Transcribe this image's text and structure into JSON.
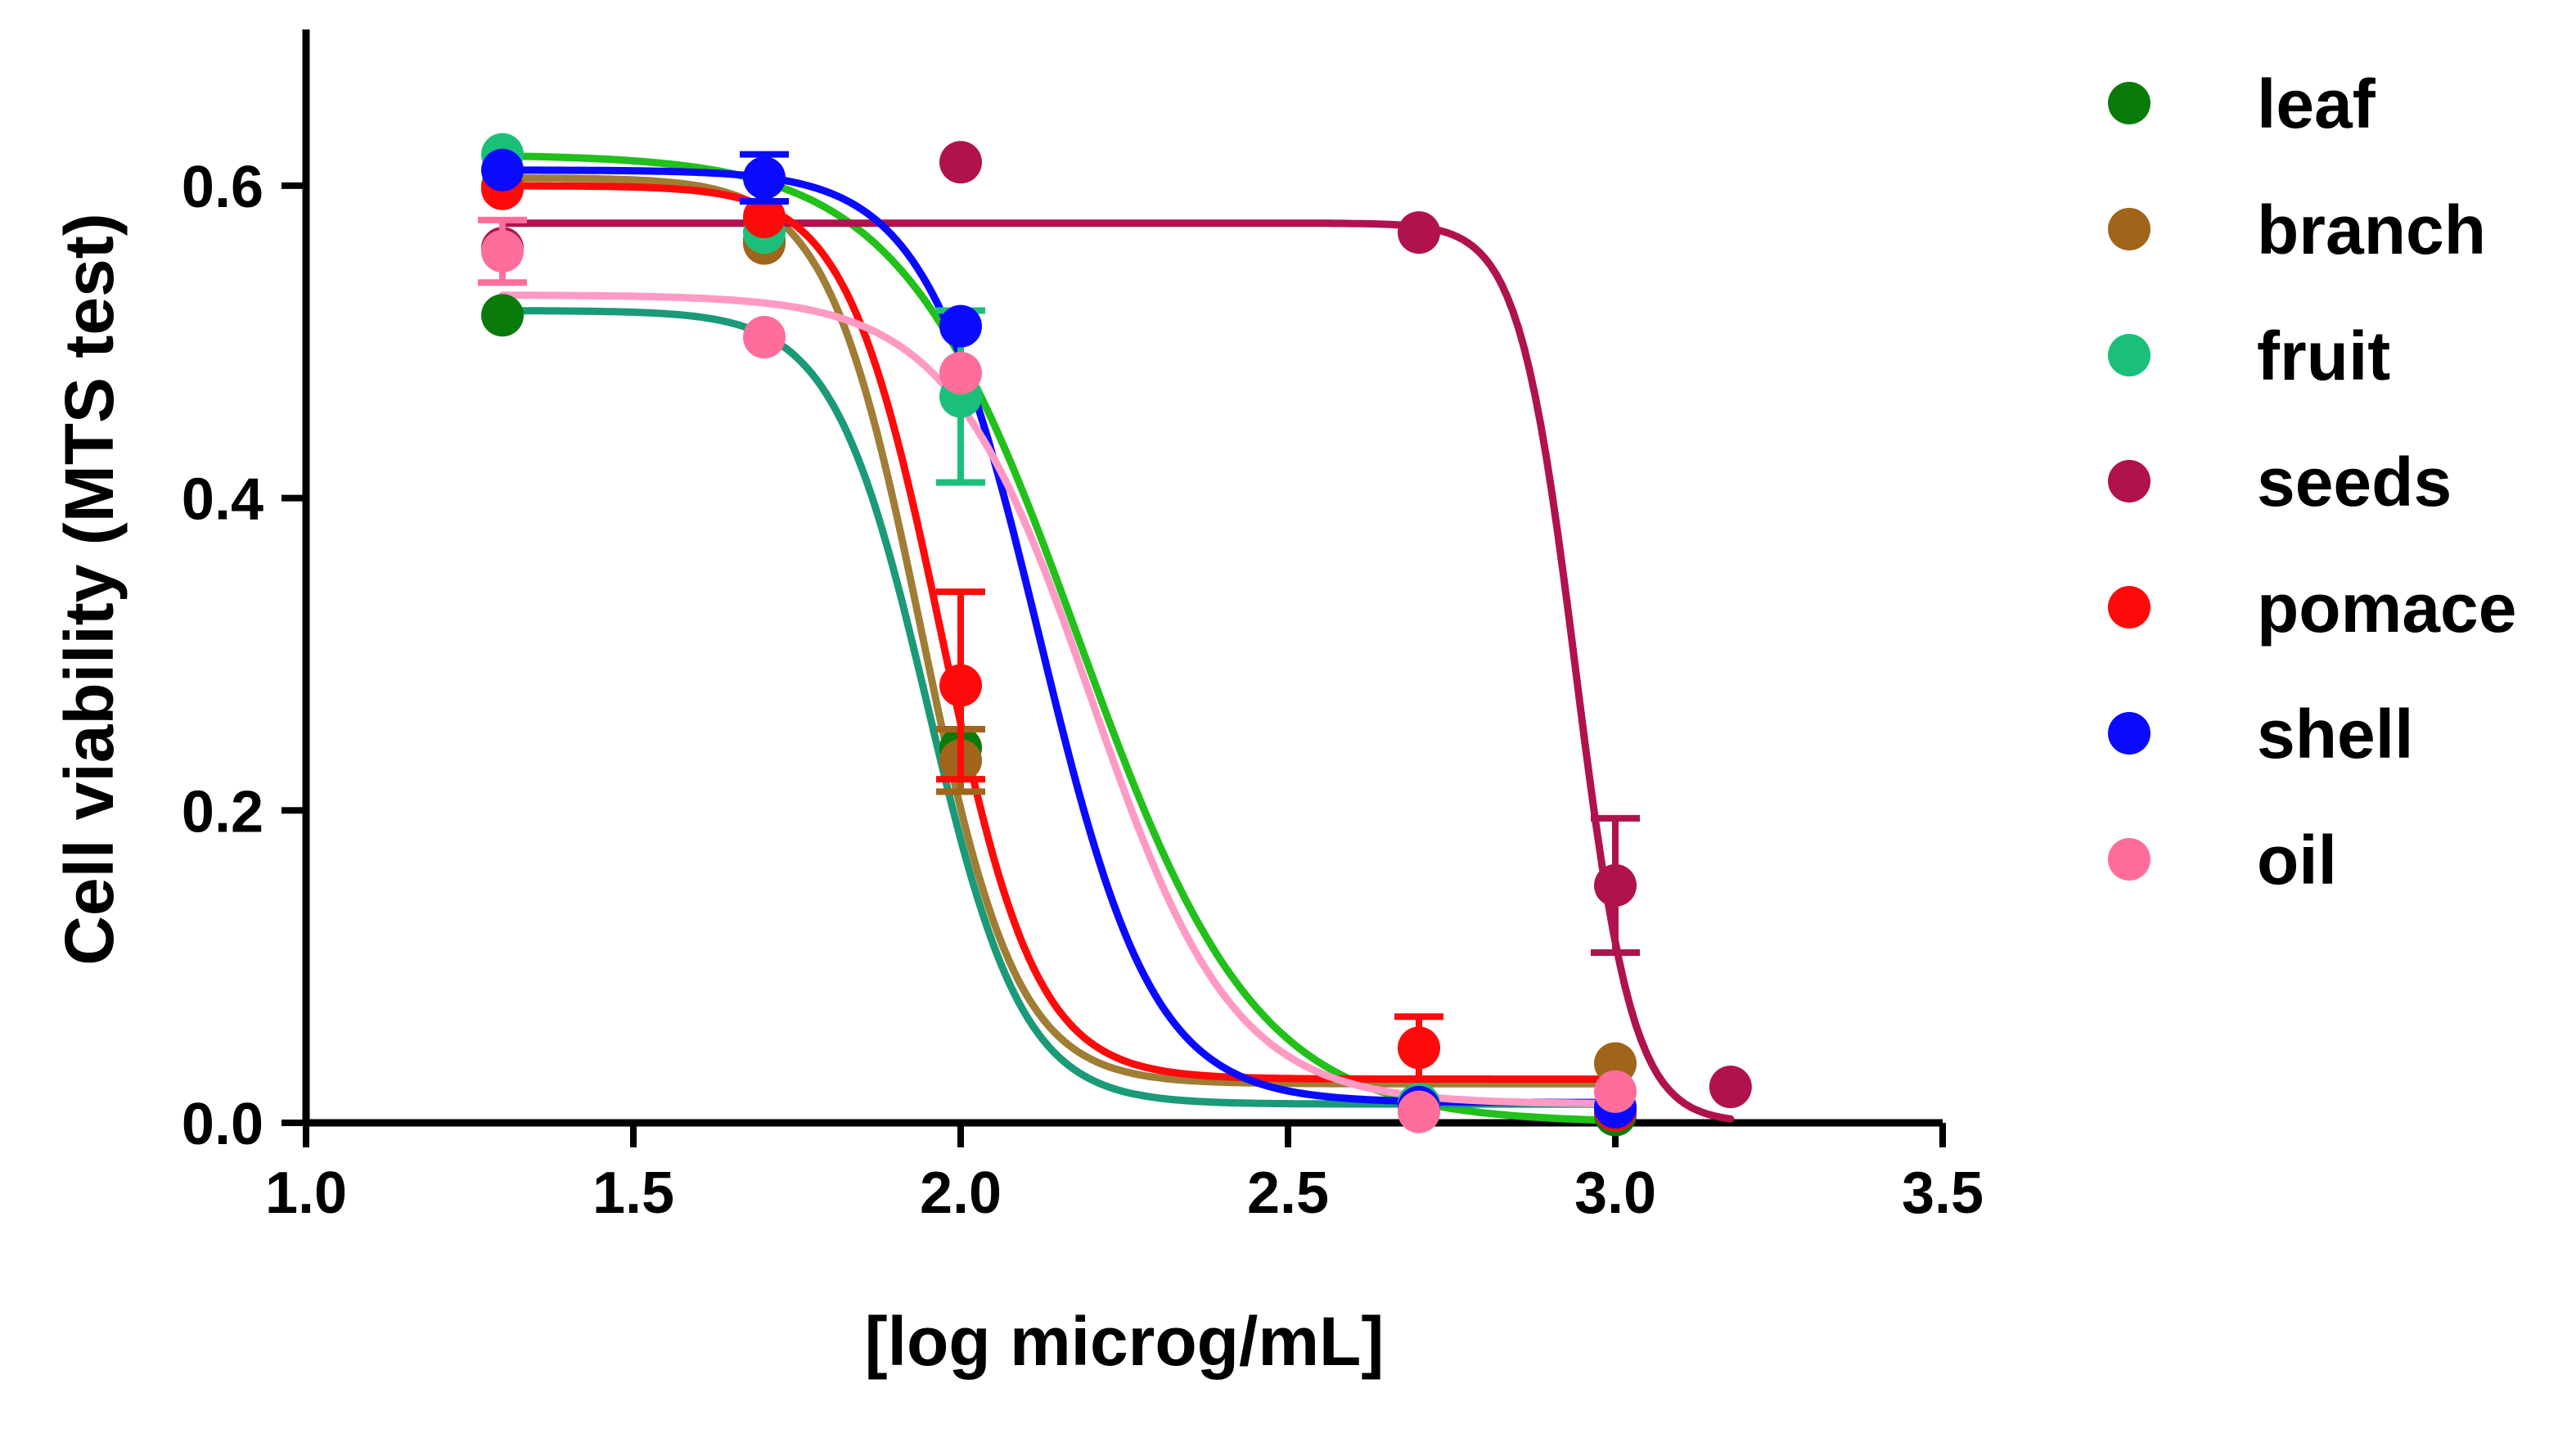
{
  "chart_data": {
    "type": "scatter",
    "title": "",
    "xlabel": "[log microg/mL]",
    "ylabel": "Cell viability (MTS test)",
    "xlim": [
      1.0,
      3.5
    ],
    "ylim": [
      0.0,
      0.7
    ],
    "xticks": [
      1.0,
      1.5,
      2.0,
      2.5,
      3.0,
      3.5
    ],
    "xtick_labels": [
      "1.0",
      "1.5",
      "2.0",
      "2.5",
      "3.0",
      "3.5"
    ],
    "yticks": [
      0.0,
      0.2,
      0.4,
      0.6
    ],
    "ytick_labels": [
      "0.0",
      "0.2",
      "0.4",
      "0.6"
    ],
    "grid": false,
    "legend_position": "right",
    "fit": "four-parameter sigmoidal dose-response",
    "series": [
      {
        "name": "leaf",
        "marker_color": "#0a7a0a",
        "curve_color": "#22c01a",
        "points": [
          {
            "x": 1.3,
            "y": 0.517,
            "err": 0.0
          },
          {
            "x": 1.7,
            "y": 0.565,
            "err": 0.0
          },
          {
            "x": 2.0,
            "y": 0.24,
            "err": 0.0
          },
          {
            "x": 2.7,
            "y": 0.012,
            "err": 0.0
          },
          {
            "x": 3.0,
            "y": 0.005,
            "err": 0.0
          }
        ],
        "fit": {
          "top": 0.62,
          "bottom": 0.0,
          "logEC50": 2.18,
          "hill": -3.2,
          "x_start": 1.3,
          "x_end": 3.0
        }
      },
      {
        "name": "branch",
        "marker_color": "#a0651a",
        "curve_color": "#a07d35",
        "points": [
          {
            "x": 1.3,
            "y": 0.6,
            "err": 0.0
          },
          {
            "x": 1.7,
            "y": 0.563,
            "err": 0.0
          },
          {
            "x": 2.0,
            "y": 0.232,
            "err": 0.02
          },
          {
            "x": 2.7,
            "y": 0.012,
            "err": 0.0
          },
          {
            "x": 3.0,
            "y": 0.038,
            "err": 0.0
          }
        ],
        "fit": {
          "top": 0.605,
          "bottom": 0.025,
          "logEC50": 1.94,
          "hill": -6.0,
          "x_start": 1.3,
          "x_end": 3.0
        }
      },
      {
        "name": "fruit",
        "marker_color": "#1ac07a",
        "curve_color": "#1a9a78",
        "points": [
          {
            "x": 1.3,
            "y": 0.62,
            "err": 0.0
          },
          {
            "x": 1.7,
            "y": 0.57,
            "err": 0.0
          },
          {
            "x": 2.0,
            "y": 0.465,
            "err": 0.055
          },
          {
            "x": 2.7,
            "y": 0.012,
            "err": 0.0
          },
          {
            "x": 3.0,
            "y": 0.008,
            "err": 0.0
          }
        ],
        "fit": {
          "top": 0.52,
          "bottom": 0.012,
          "logEC50": 1.95,
          "hill": -6.0,
          "x_start": 1.3,
          "x_end": 3.0
        }
      },
      {
        "name": "seeds",
        "marker_color": "#b0124e",
        "curve_color": "#b0124e",
        "points": [
          {
            "x": 1.3,
            "y": 0.56,
            "err": 0.0
          },
          {
            "x": 2.0,
            "y": 0.615,
            "err": 0.0
          },
          {
            "x": 2.7,
            "y": 0.57,
            "err": 0.0
          },
          {
            "x": 3.0,
            "y": 0.152,
            "err": 0.043
          },
          {
            "x": 3.176,
            "y": 0.023,
            "err": 0.0
          }
        ],
        "fit": {
          "top": 0.576,
          "bottom": 0.0,
          "logEC50": 2.94,
          "hill": -10.0,
          "x_start": 1.3,
          "x_end": 3.176
        }
      },
      {
        "name": "pomace",
        "marker_color": "#ff0a0a",
        "curve_color": "#ff0a0a",
        "points": [
          {
            "x": 1.3,
            "y": 0.598,
            "err": 0.0
          },
          {
            "x": 1.7,
            "y": 0.58,
            "err": 0.0
          },
          {
            "x": 2.0,
            "y": 0.28,
            "err": 0.06
          },
          {
            "x": 2.7,
            "y": 0.048,
            "err": 0.02
          },
          {
            "x": 3.0,
            "y": 0.008,
            "err": 0.0
          }
        ],
        "fit": {
          "top": 0.6,
          "bottom": 0.028,
          "logEC50": 1.97,
          "hill": -6.0,
          "x_start": 1.3,
          "x_end": 3.0
        }
      },
      {
        "name": "shell",
        "marker_color": "#0a0aff",
        "curve_color": "#0a0aff",
        "points": [
          {
            "x": 1.3,
            "y": 0.61,
            "err": 0.0
          },
          {
            "x": 1.7,
            "y": 0.605,
            "err": 0.015
          },
          {
            "x": 2.0,
            "y": 0.51,
            "err": 0.0
          },
          {
            "x": 2.7,
            "y": 0.01,
            "err": 0.0
          },
          {
            "x": 3.0,
            "y": 0.01,
            "err": 0.0
          }
        ],
        "fit": {
          "top": 0.61,
          "bottom": 0.013,
          "logEC50": 2.12,
          "hill": -5.0,
          "x_start": 1.3,
          "x_end": 3.0
        }
      },
      {
        "name": "oil",
        "marker_color": "#ff6e9b",
        "curve_color": "#ff9ac4",
        "points": [
          {
            "x": 1.3,
            "y": 0.558,
            "err": 0.02
          },
          {
            "x": 1.7,
            "y": 0.503,
            "err": 0.0
          },
          {
            "x": 2.0,
            "y": 0.48,
            "err": 0.0
          },
          {
            "x": 2.7,
            "y": 0.007,
            "err": 0.0
          },
          {
            "x": 3.0,
            "y": 0.02,
            "err": 0.0
          }
        ],
        "fit": {
          "top": 0.53,
          "bottom": 0.012,
          "logEC50": 2.2,
          "hill": -4.0,
          "x_start": 1.3,
          "x_end": 3.0
        }
      }
    ]
  }
}
